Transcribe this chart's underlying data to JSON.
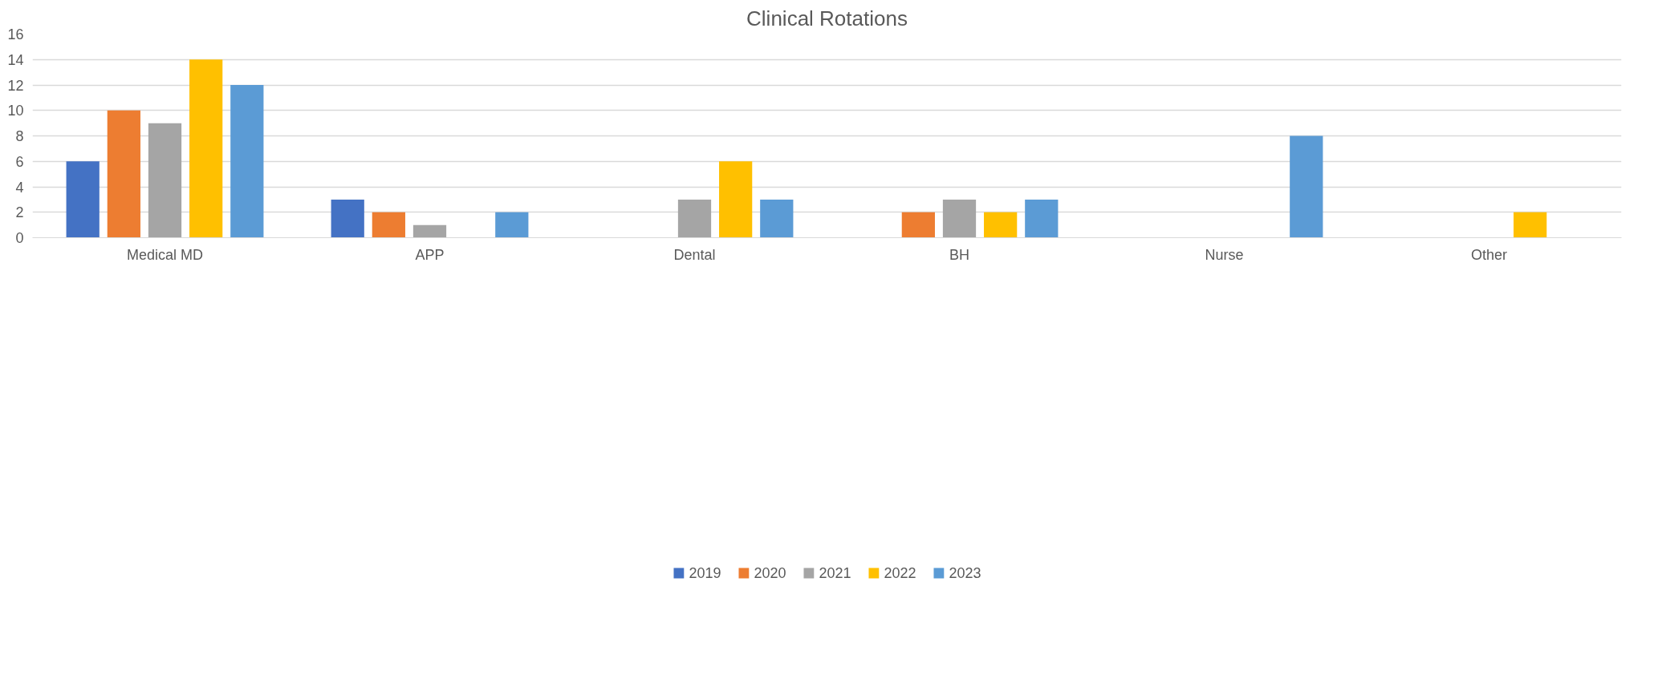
{
  "chart_data": {
    "type": "bar",
    "title": "Clinical Rotations",
    "categories": [
      "Medical MD",
      "APP",
      "Dental",
      "BH",
      "Nurse",
      "Other"
    ],
    "series": [
      {
        "name": "2019",
        "color": "#4472c4",
        "values": [
          6,
          3,
          0,
          0,
          0,
          0
        ]
      },
      {
        "name": "2020",
        "color": "#ed7d31",
        "values": [
          10,
          2,
          0,
          2,
          0,
          0
        ]
      },
      {
        "name": "2021",
        "color": "#a5a5a5",
        "values": [
          9,
          1,
          3,
          3,
          0,
          0
        ]
      },
      {
        "name": "2022",
        "color": "#ffc000",
        "values": [
          14,
          0,
          6,
          2,
          0,
          2
        ]
      },
      {
        "name": "2023",
        "color": "#5b9bd5",
        "values": [
          12,
          2,
          3,
          3,
          8,
          0
        ]
      }
    ],
    "ylim": [
      0,
      16
    ],
    "yticks": [
      0,
      2,
      4,
      6,
      8,
      10,
      12,
      14,
      16
    ],
    "grid": "y",
    "legend": "bottom"
  }
}
